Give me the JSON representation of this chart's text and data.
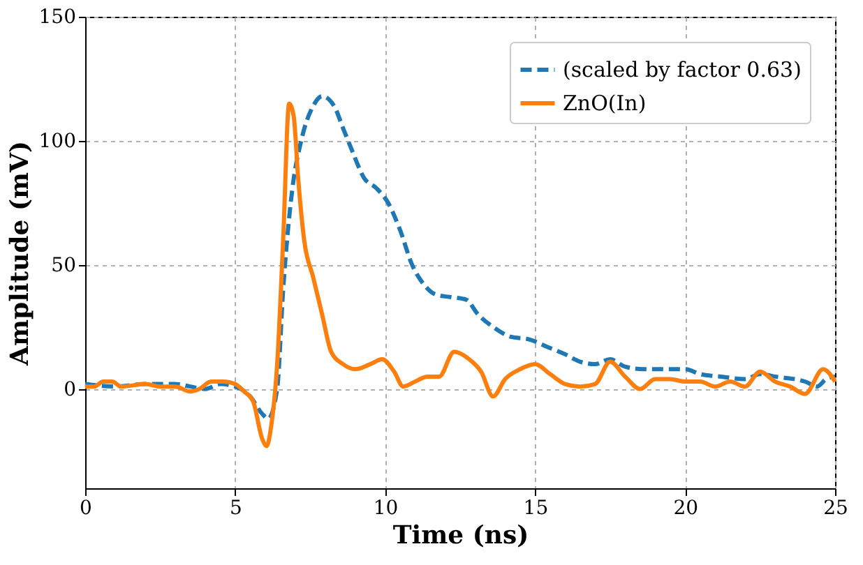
{
  "chart_data": {
    "type": "line",
    "xlabel": "Time (ns)",
    "ylabel": "Amplitude (mV)",
    "xlim": [
      0,
      25
    ],
    "ylim": [
      -40,
      150
    ],
    "xticks": [
      0,
      5,
      10,
      15,
      20,
      25
    ],
    "yticks": [
      0,
      50,
      100,
      150
    ],
    "grid": true,
    "legend": "top right",
    "series": [
      {
        "name": "(scaled by factor 0.63)",
        "color": "#1f77b4",
        "line_style": "dashed",
        "x": [
          0,
          1,
          2,
          3,
          3.5,
          4,
          4.5,
          5,
          5.5,
          5.9,
          6.1,
          6.4,
          6.6,
          6.9,
          7.2,
          7.6,
          7.9,
          8.3,
          8.6,
          8.9,
          9.3,
          9.7,
          10.1,
          10.5,
          10.9,
          11.3,
          11.7,
          12.2,
          12.7,
          13.1,
          13.6,
          14.2,
          14.8,
          15.4,
          16,
          16.5,
          17,
          17.5,
          18,
          18.6,
          19.2,
          20,
          20.5,
          21.2,
          22,
          22.5,
          23,
          24,
          24.4,
          24.7,
          25
        ],
        "values": [
          2,
          1,
          2,
          2,
          1,
          0,
          2,
          1,
          -3,
          -10,
          -12,
          0,
          40,
          80,
          100,
          114,
          118,
          114,
          105,
          96,
          85,
          81,
          75,
          64,
          50,
          42,
          38,
          37,
          36,
          30,
          25,
          21,
          20,
          17,
          14,
          11,
          10,
          12,
          9,
          8,
          8,
          8,
          6,
          5,
          4,
          6,
          5,
          3,
          1,
          4,
          5
        ]
      },
      {
        "name": "ZnO(In)",
        "color": "#ff7f0e",
        "line_style": "solid",
        "x": [
          0,
          0.3,
          0.6,
          0.9,
          1.2,
          2,
          2.5,
          3,
          3.5,
          3.8,
          4.2,
          4.6,
          5,
          5.3,
          5.6,
          5.9,
          6.05,
          6.2,
          6.4,
          6.6,
          6.8,
          6.95,
          7.1,
          7.3,
          7.6,
          7.9,
          8.2,
          8.6,
          9,
          9.5,
          9.9,
          10.3,
          10.6,
          11,
          11.4,
          11.8,
          12.3,
          12.8,
          13.2,
          13.6,
          14,
          14.5,
          15,
          15.5,
          16,
          16.5,
          17,
          17.5,
          18,
          18.5,
          19,
          19.5,
          20,
          20.5,
          21,
          21.5,
          22,
          22.5,
          23,
          23.5,
          24,
          24.6,
          25
        ],
        "values": [
          1,
          1,
          3,
          3,
          1,
          2,
          1,
          1,
          -1,
          0,
          3,
          3,
          2,
          -1,
          -5,
          -20,
          -23,
          -15,
          10,
          60,
          115,
          110,
          85,
          60,
          45,
          30,
          15,
          10,
          8,
          10,
          12,
          7,
          1,
          3,
          5,
          5,
          15,
          12,
          7,
          -3,
          4,
          8,
          10,
          6,
          2,
          1,
          2,
          11,
          5,
          0,
          4,
          4,
          3,
          3,
          1,
          3,
          1,
          7,
          3,
          1,
          -2,
          8,
          3
        ]
      }
    ]
  }
}
